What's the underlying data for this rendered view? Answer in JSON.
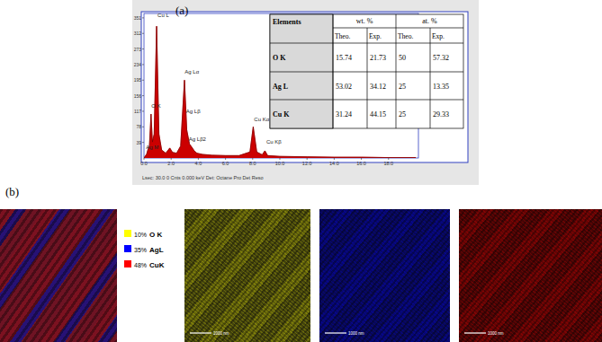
{
  "panel_labels": [
    "(a)",
    "(b)"
  ],
  "chart_data": {
    "type": "area",
    "color": "#cc0000",
    "x": [
      0,
      0.2,
      0.3,
      0.4,
      0.52,
      0.62,
      0.75,
      0.93,
      1.1,
      1.3,
      1.6,
      1.9,
      2.1,
      2.4,
      2.7,
      2.98,
      3.15,
      3.35,
      3.5,
      3.7,
      3.9,
      4.3,
      5.0,
      6.0,
      7.0,
      7.8,
      8.04,
      8.3,
      8.7,
      8.9,
      9.1,
      10,
      12,
      14,
      16,
      18,
      20
    ],
    "values": [
      0,
      10,
      22,
      30,
      110,
      40,
      60,
      330,
      60,
      20,
      12,
      25,
      14,
      12,
      30,
      195,
      70,
      35,
      28,
      18,
      12,
      9,
      7,
      6,
      6,
      15,
      78,
      15,
      8,
      18,
      6,
      4,
      3,
      2,
      2,
      1,
      1
    ],
    "xlim": [
      0,
      20.2
    ],
    "xticks": [
      {
        "value": 0,
        "label": "0.0"
      },
      {
        "value": 2,
        "label": "2.0"
      },
      {
        "value": 4,
        "label": "4.0"
      },
      {
        "value": 6,
        "label": "6.0"
      },
      {
        "value": 8,
        "label": "8.0"
      },
      {
        "value": 10,
        "label": "10.0"
      },
      {
        "value": 12,
        "label": "12.0"
      },
      {
        "value": 14,
        "label": "14.0"
      },
      {
        "value": 16,
        "label": "16.0"
      },
      {
        "value": 18,
        "label": "18.0"
      }
    ],
    "ylim": [
      0,
      362
    ],
    "yticks": [
      39,
      78,
      117,
      156,
      195,
      234,
      273,
      312,
      351
    ],
    "annotations": [
      {
        "text": "Cu L",
        "x": 1.0,
        "y": 352
      },
      {
        "text": "Ag Lα",
        "x": 3.0,
        "y": 212
      },
      {
        "text": "O K",
        "x": 0.55,
        "y": 125
      },
      {
        "text": "Ag Lβ",
        "x": 3.1,
        "y": 112
      },
      {
        "text": "Ag Lβ2",
        "x": 3.3,
        "y": 42
      },
      {
        "text": "Ag M",
        "x": 0.15,
        "y": 22
      },
      {
        "text": "Cu Kα",
        "x": 8.1,
        "y": 92
      },
      {
        "text": "Cu Kβ",
        "x": 9.0,
        "y": 35
      }
    ],
    "footer": "Lsec: 30.0 0 Cnts 0.000 keV Det: Octane Pro Det          Reso"
  },
  "table": {
    "header": [
      "Elements",
      "wt. %",
      "at. %"
    ],
    "subheader": [
      "Theo.",
      "Exp.",
      "Theo.",
      "Exp."
    ],
    "rows": [
      [
        "O K",
        15.74,
        21.73,
        50,
        57.32
      ],
      [
        "Ag L",
        53.02,
        34.12,
        25,
        13.35
      ],
      [
        "Cu K",
        31.24,
        44.15,
        25,
        29.33
      ]
    ]
  },
  "maps": {
    "legend": [
      {
        "percent": "10%",
        "element": "O K",
        "color": "#ffff00"
      },
      {
        "percent": "35%",
        "element": "AgL",
        "color": "#0000ff"
      },
      {
        "percent": "48%",
        "element": "CuK",
        "color": "#ff0000"
      }
    ],
    "scale_bar": "1000 nm"
  }
}
